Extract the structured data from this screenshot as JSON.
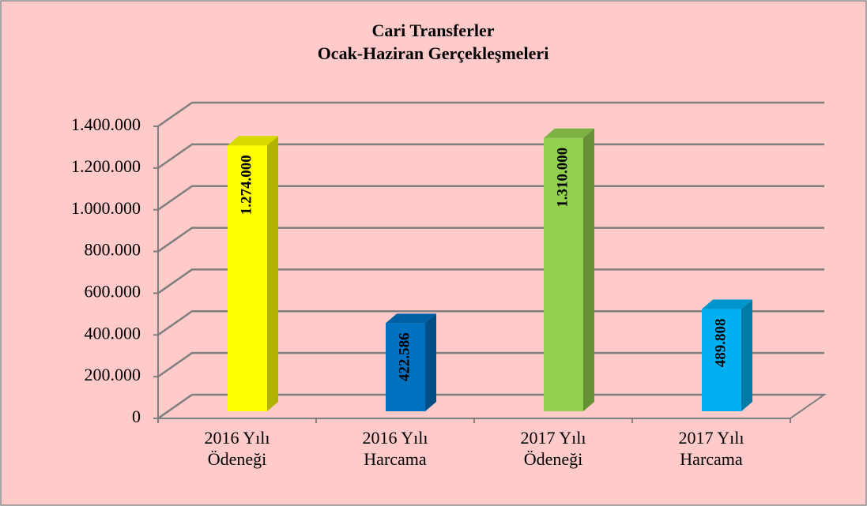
{
  "chart_data": {
    "type": "bar3d",
    "title": "Cari Transferler",
    "subtitle": "Ocak-Haziran Gerçekleşmeleri",
    "categories": [
      [
        "2016 Yılı",
        "Ödeneği"
      ],
      [
        "2016 Yılı",
        "Harcama"
      ],
      [
        "2017 Yılı",
        "Ödeneği"
      ],
      [
        "2017 Yılı",
        "Harcama"
      ]
    ],
    "values": [
      1274000,
      422586,
      1310000,
      489808
    ],
    "value_labels": [
      "1.274.000",
      "422.586",
      "1.310.000",
      "489.808"
    ],
    "colors": [
      "#ffff00",
      "#0070c0",
      "#92d050",
      "#00b0f0"
    ],
    "ylim": [
      0,
      1400000
    ],
    "yticks": [
      0,
      {
        "value": 200000,
        "label": "200.000"
      },
      {
        "value": 400000,
        "label": "400.000"
      },
      {
        "value": 600000,
        "label": "600.000"
      },
      {
        "value": 800000,
        "label": "800.000"
      },
      {
        "value": 1000000,
        "label": "1.000.000"
      },
      {
        "value": 1200000,
        "label": "1.200.000"
      },
      {
        "value": 1400000,
        "label": "1.400.000"
      }
    ],
    "grid": true
  }
}
